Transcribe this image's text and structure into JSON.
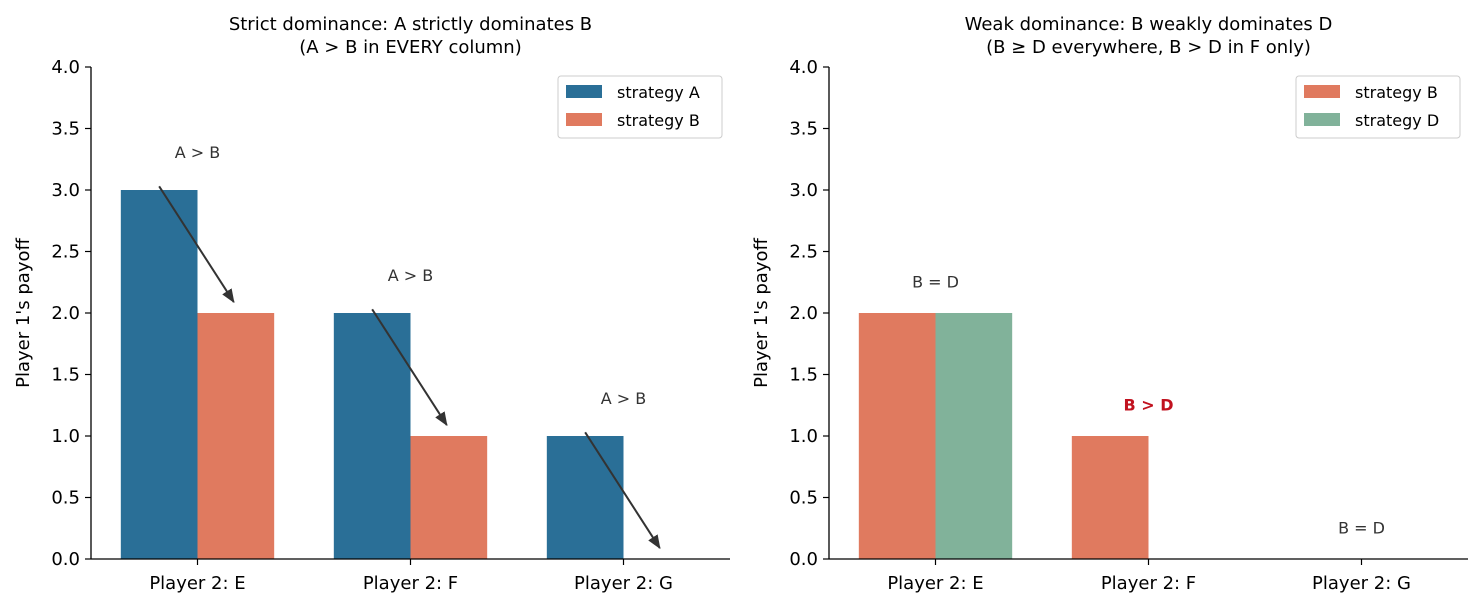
{
  "chart_data": [
    {
      "type": "bar",
      "title": "Strict dominance:  A strictly dominates B\n(A > B in EVERY column)",
      "xlabel": "",
      "ylabel": "Player 1's payoff",
      "categories": [
        "Player 2: E",
        "Player 2: F",
        "Player 2: G"
      ],
      "ylim": [
        0,
        4.0
      ],
      "yticks": [
        "0.0",
        "0.5",
        "1.0",
        "1.5",
        "2.0",
        "2.5",
        "3.0",
        "3.5",
        "4.0"
      ],
      "legend_position": "top-right",
      "grid": false,
      "series": [
        {
          "name": "strategy A",
          "values": [
            3,
            2,
            1
          ],
          "color": "#2a6f97"
        },
        {
          "name": "strategy B",
          "values": [
            2,
            1,
            0
          ],
          "color": "#e07a5f"
        }
      ],
      "annotations": [
        {
          "text": "A > B",
          "x": "Player 2: E",
          "y": 3.3,
          "arrow_from": [
            -0.18,
            3.03
          ],
          "arrow_to": [
            0.17,
            2.09
          ],
          "bold": false,
          "color": "#333333"
        },
        {
          "text": "A > B",
          "x": "Player 2: F",
          "y": 2.3,
          "arrow_from": [
            -0.18,
            2.03
          ],
          "arrow_to": [
            0.17,
            1.09
          ],
          "bold": false,
          "color": "#333333"
        },
        {
          "text": "A > B",
          "x": "Player 2: G",
          "y": 1.3,
          "arrow_from": [
            -0.18,
            1.03
          ],
          "arrow_to": [
            0.17,
            0.09
          ],
          "bold": false,
          "color": "#333333"
        }
      ]
    },
    {
      "type": "bar",
      "title": "Weak dominance:  B weakly dominates D\n(B ≥ D everywhere, B > D in F only)",
      "xlabel": "",
      "ylabel": "Player 1's payoff",
      "categories": [
        "Player 2: E",
        "Player 2: F",
        "Player 2: G"
      ],
      "ylim": [
        0,
        4.0
      ],
      "yticks": [
        "0.0",
        "0.5",
        "1.0",
        "1.5",
        "2.0",
        "2.5",
        "3.0",
        "3.5",
        "4.0"
      ],
      "legend_position": "top-right",
      "grid": false,
      "series": [
        {
          "name": "strategy B",
          "values": [
            2,
            1,
            0
          ],
          "color": "#e07a5f"
        },
        {
          "name": "strategy D",
          "values": [
            2,
            0,
            0
          ],
          "color": "#81b29a"
        }
      ],
      "annotations": [
        {
          "text": "B = D",
          "x": "Player 2: E",
          "y": 2.25,
          "bold": false,
          "color": "#333333"
        },
        {
          "text": "B > D",
          "x": "Player 2: F",
          "y": 1.25,
          "bold": true,
          "color": "#c1121f"
        },
        {
          "text": "B = D",
          "x": "Player 2: G",
          "y": 0.25,
          "bold": false,
          "color": "#333333"
        }
      ]
    }
  ]
}
